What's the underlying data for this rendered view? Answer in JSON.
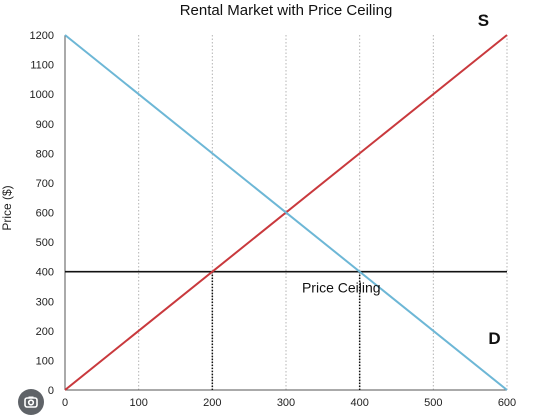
{
  "chart_data": {
    "type": "line",
    "title": "Rental Market with Price Ceiling",
    "xlabel": "",
    "ylabel": "Price ($)",
    "xlim": [
      0,
      600
    ],
    "ylim": [
      0,
      1200
    ],
    "x_ticks": [
      0,
      100,
      200,
      300,
      400,
      500,
      600
    ],
    "y_ticks": [
      0,
      100,
      200,
      300,
      400,
      500,
      600,
      700,
      800,
      900,
      1000,
      1100,
      1200
    ],
    "vertical_grid": true,
    "series": [
      {
        "name": "S",
        "color": "#c9393d",
        "points": [
          [
            0,
            0
          ],
          [
            600,
            1200
          ]
        ]
      },
      {
        "name": "D",
        "color": "#6db7d6",
        "points": [
          [
            0,
            1200
          ],
          [
            600,
            0
          ]
        ]
      }
    ],
    "price_ceiling": {
      "label": "Price Ceiling",
      "value": 400,
      "color": "#111111"
    },
    "quantity_markers": [
      200,
      400
    ]
  },
  "overlay": {
    "icon": "lens-icon"
  }
}
